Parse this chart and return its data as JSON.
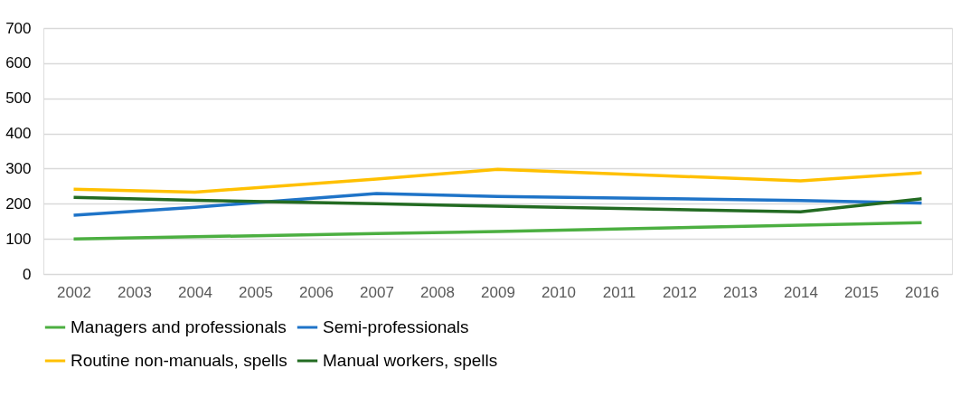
{
  "chart_data": {
    "type": "line",
    "x": [
      2002,
      2004,
      2007,
      2009,
      2014,
      2016
    ],
    "xlim": [
      2001.5,
      2016.5
    ],
    "xticks": [
      2002,
      2003,
      2004,
      2005,
      2006,
      2007,
      2008,
      2009,
      2010,
      2011,
      2012,
      2013,
      2014,
      2015,
      2016
    ],
    "ylim": [
      0,
      700
    ],
    "yticks": [
      0,
      100,
      200,
      300,
      400,
      500,
      600,
      700
    ],
    "grid": "y",
    "legend": "bottom",
    "marker": "none",
    "line_style": "solid",
    "series": [
      {
        "name": "Managers and professionals",
        "color": "#4caf41",
        "values": [
          100,
          106,
          115,
          121,
          139,
          146
        ]
      },
      {
        "name": "Semi-professionals",
        "color": "#1f74c8",
        "values": [
          167,
          190,
          229,
          221,
          209,
          202
        ]
      },
      {
        "name": "Routine non-manuals, spells",
        "color": "#ffc000",
        "values": [
          241,
          233,
          270,
          298,
          265,
          288
        ]
      },
      {
        "name": "Manual workers, spells",
        "color": "#236b22",
        "values": [
          218,
          210,
          200,
          193,
          177,
          214
        ]
      }
    ]
  }
}
